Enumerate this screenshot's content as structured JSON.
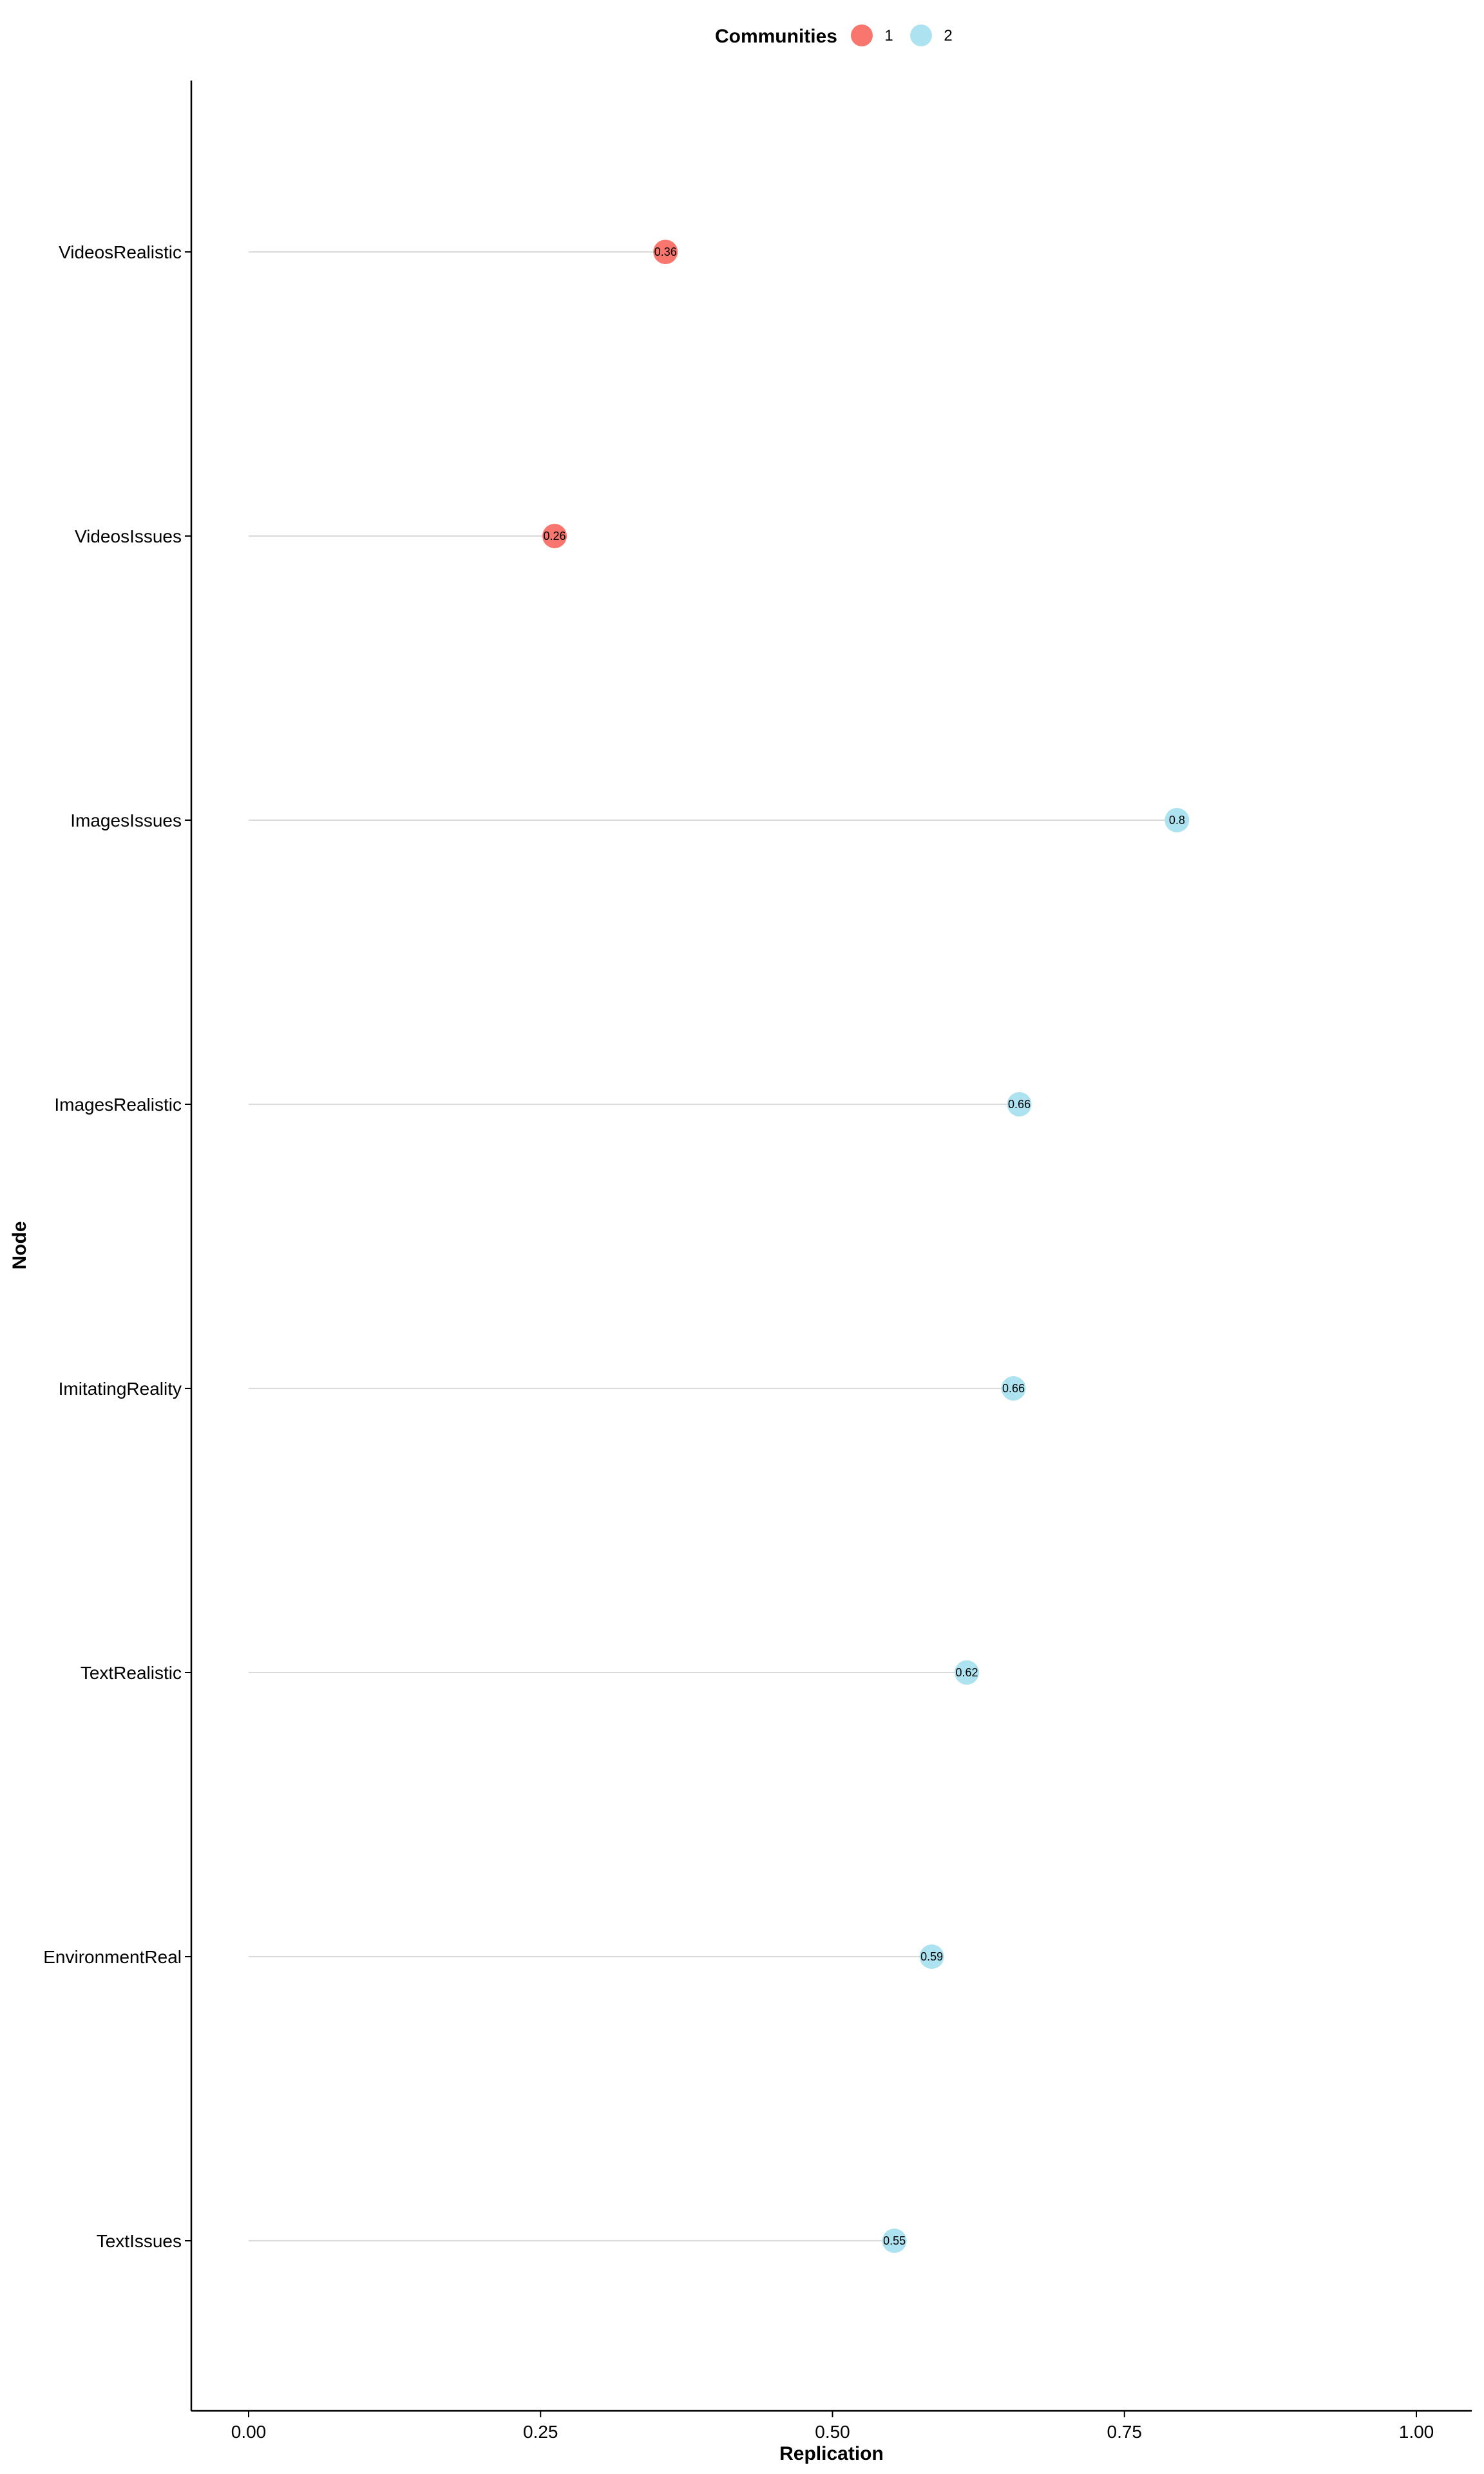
{
  "chart_data": {
    "type": "lollipop",
    "orientation": "horizontal",
    "xlabel": "Replication",
    "ylabel": "Node",
    "xlim": [
      0,
      1
    ],
    "x_ticks": [
      "0.00",
      "0.25",
      "0.50",
      "0.75",
      "1.00"
    ],
    "x_tick_values": [
      0,
      0.25,
      0.5,
      0.75,
      1.0
    ],
    "grid": false,
    "legend": {
      "title": "Communities",
      "placement": "top",
      "entries": [
        {
          "label": "1",
          "color": "#F8766D"
        },
        {
          "label": "2",
          "color": "#ADE3F0"
        }
      ]
    },
    "points": [
      {
        "node": "VideosRealistic",
        "value": 0.357,
        "label": "0.36",
        "community": "1"
      },
      {
        "node": "VideosIssues",
        "value": 0.262,
        "label": "0.26",
        "community": "1"
      },
      {
        "node": "ImagesIssues",
        "value": 0.795,
        "label": "0.8",
        "community": "2"
      },
      {
        "node": "ImagesRealistic",
        "value": 0.66,
        "label": "0.66",
        "community": "2"
      },
      {
        "node": "ImitatingReality",
        "value": 0.655,
        "label": "0.66",
        "community": "2"
      },
      {
        "node": "TextRealistic",
        "value": 0.615,
        "label": "0.62",
        "community": "2"
      },
      {
        "node": "EnvironmentReal",
        "value": 0.585,
        "label": "0.59",
        "community": "2"
      },
      {
        "node": "TextIssues",
        "value": 0.553,
        "label": "0.55",
        "community": "2"
      }
    ],
    "stem_color": "#DADADA"
  }
}
